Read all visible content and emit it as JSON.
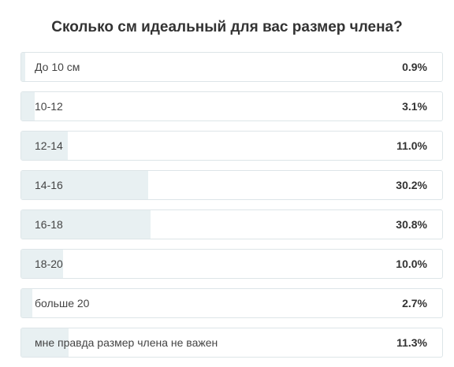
{
  "poll": {
    "title": "Сколько см идеальный для вас размер члена?",
    "options": [
      {
        "label": "До 10 см",
        "percent_text": "0.9%",
        "percent": 0.9
      },
      {
        "label": "10-12",
        "percent_text": "3.1%",
        "percent": 3.1
      },
      {
        "label": "12-14",
        "percent_text": "11.0%",
        "percent": 11.0
      },
      {
        "label": "14-16",
        "percent_text": "30.2%",
        "percent": 30.2
      },
      {
        "label": "16-18",
        "percent_text": "30.8%",
        "percent": 30.8
      },
      {
        "label": "18-20",
        "percent_text": "10.0%",
        "percent": 10.0
      },
      {
        "label": "больше 20",
        "percent_text": "2.7%",
        "percent": 2.7
      },
      {
        "label": "мне правда размер члена не важен",
        "percent_text": "11.3%",
        "percent": 11.3
      }
    ]
  },
  "colors": {
    "fill": "#e8f0f2",
    "border": "#dde5e8",
    "text": "#333333"
  }
}
